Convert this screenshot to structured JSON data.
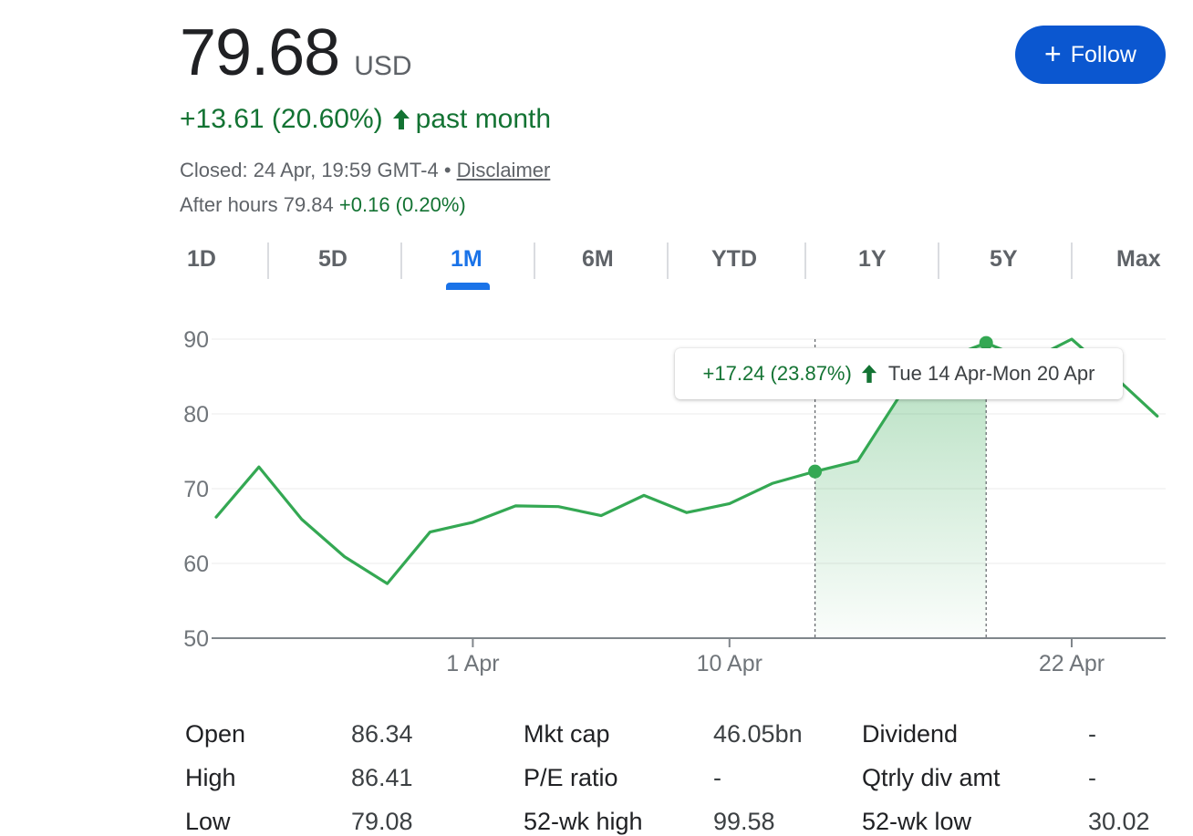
{
  "quote": {
    "price": "79.68",
    "currency": "USD",
    "change": "+13.61 (20.60%)",
    "change_period": "past month",
    "closed_text": "Closed: 24 Apr, 19:59 GMT-4 •",
    "disclaimer": "Disclaimer",
    "after_hours_label": "After hours 79.84",
    "after_hours_change": "+0.16 (0.20%)"
  },
  "follow_button": {
    "label": "Follow",
    "color": "#0b57d0"
  },
  "tabs": [
    {
      "label": "1D",
      "active": false
    },
    {
      "label": "5D",
      "active": false
    },
    {
      "label": "1M",
      "active": true
    },
    {
      "label": "6M",
      "active": false
    },
    {
      "label": "YTD",
      "active": false
    },
    {
      "label": "1Y",
      "active": false
    },
    {
      "label": "5Y",
      "active": false
    },
    {
      "label": "Max",
      "active": false
    }
  ],
  "tooltip": {
    "change": "+17.24 (23.87%)",
    "range": "Tue 14 Apr-Mon 20 Apr"
  },
  "chart_data": {
    "type": "line",
    "title": "",
    "xlabel": "",
    "ylabel": "",
    "ylim": [
      50,
      90
    ],
    "yticks": [
      50,
      60,
      70,
      80,
      90
    ],
    "x_tick_labels": [
      {
        "label": "1 Apr",
        "x": 6
      },
      {
        "label": "10 Apr",
        "x": 12
      },
      {
        "label": "22 Apr",
        "x": 20
      }
    ],
    "series": [
      {
        "color": "#34a853",
        "x": [
          0,
          1,
          2,
          3,
          4,
          5,
          6,
          7,
          8,
          9,
          10,
          11,
          12,
          13,
          14,
          15,
          16,
          17,
          18,
          19,
          20,
          21,
          22
        ],
        "y": [
          66.2,
          72.9,
          65.9,
          60.9,
          57.3,
          64.2,
          65.5,
          67.7,
          67.6,
          66.4,
          69.1,
          66.8,
          68.0,
          70.7,
          72.3,
          73.7,
          82.6,
          87.3,
          89.5,
          87.1,
          90.0,
          85.0,
          79.7
        ]
      }
    ],
    "selection": {
      "start_x": 14,
      "end_x": 18
    },
    "grid": true,
    "legend": "none"
  },
  "stats": [
    {
      "label": "Open",
      "value": "86.34"
    },
    {
      "label": "High",
      "value": "86.41"
    },
    {
      "label": "Low",
      "value": "79.08"
    },
    {
      "label": "Mkt cap",
      "value": "46.05bn"
    },
    {
      "label": "P/E ratio",
      "value": "-"
    },
    {
      "label": "52-wk high",
      "value": "99.58"
    },
    {
      "label": "Dividend",
      "value": "-"
    },
    {
      "label": "Qtrly div amt",
      "value": "-"
    },
    {
      "label": "52-wk low",
      "value": "30.02"
    }
  ]
}
